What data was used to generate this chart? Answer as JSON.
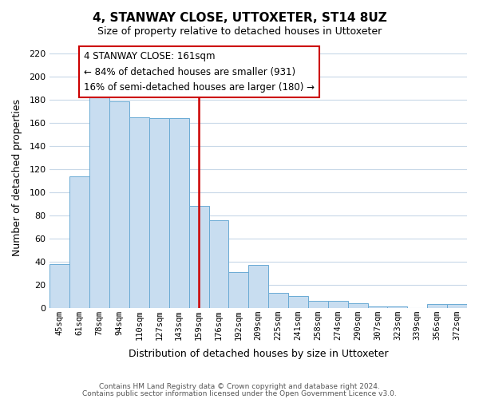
{
  "title": "4, STANWAY CLOSE, UTTOXETER, ST14 8UZ",
  "subtitle": "Size of property relative to detached houses in Uttoxeter",
  "xlabel": "Distribution of detached houses by size in Uttoxeter",
  "ylabel": "Number of detached properties",
  "categories": [
    "45sqm",
    "61sqm",
    "78sqm",
    "94sqm",
    "110sqm",
    "127sqm",
    "143sqm",
    "159sqm",
    "176sqm",
    "192sqm",
    "209sqm",
    "225sqm",
    "241sqm",
    "258sqm",
    "274sqm",
    "290sqm",
    "307sqm",
    "323sqm",
    "339sqm",
    "356sqm",
    "372sqm"
  ],
  "values": [
    38,
    114,
    184,
    179,
    165,
    164,
    164,
    88,
    76,
    31,
    37,
    13,
    10,
    6,
    6,
    4,
    1,
    1,
    0,
    3,
    3
  ],
  "bar_color": "#c8ddf0",
  "bar_edge_color": "#6aaad4",
  "vline_x_index": 7,
  "vline_color": "#cc0000",
  "annotation_title": "4 STANWAY CLOSE: 161sqm",
  "annotation_line1": "← 84% of detached houses are smaller (931)",
  "annotation_line2": "16% of semi-detached houses are larger (180) →",
  "annotation_box_color": "#ffffff",
  "annotation_box_edge": "#cc0000",
  "ylim": [
    0,
    225
  ],
  "yticks": [
    0,
    20,
    40,
    60,
    80,
    100,
    120,
    140,
    160,
    180,
    200,
    220
  ],
  "footer1": "Contains HM Land Registry data © Crown copyright and database right 2024.",
  "footer2": "Contains public sector information licensed under the Open Government Licence v3.0.",
  "bg_color": "#ffffff",
  "grid_color": "#c8d8e8",
  "title_fontsize": 11,
  "subtitle_fontsize": 9
}
